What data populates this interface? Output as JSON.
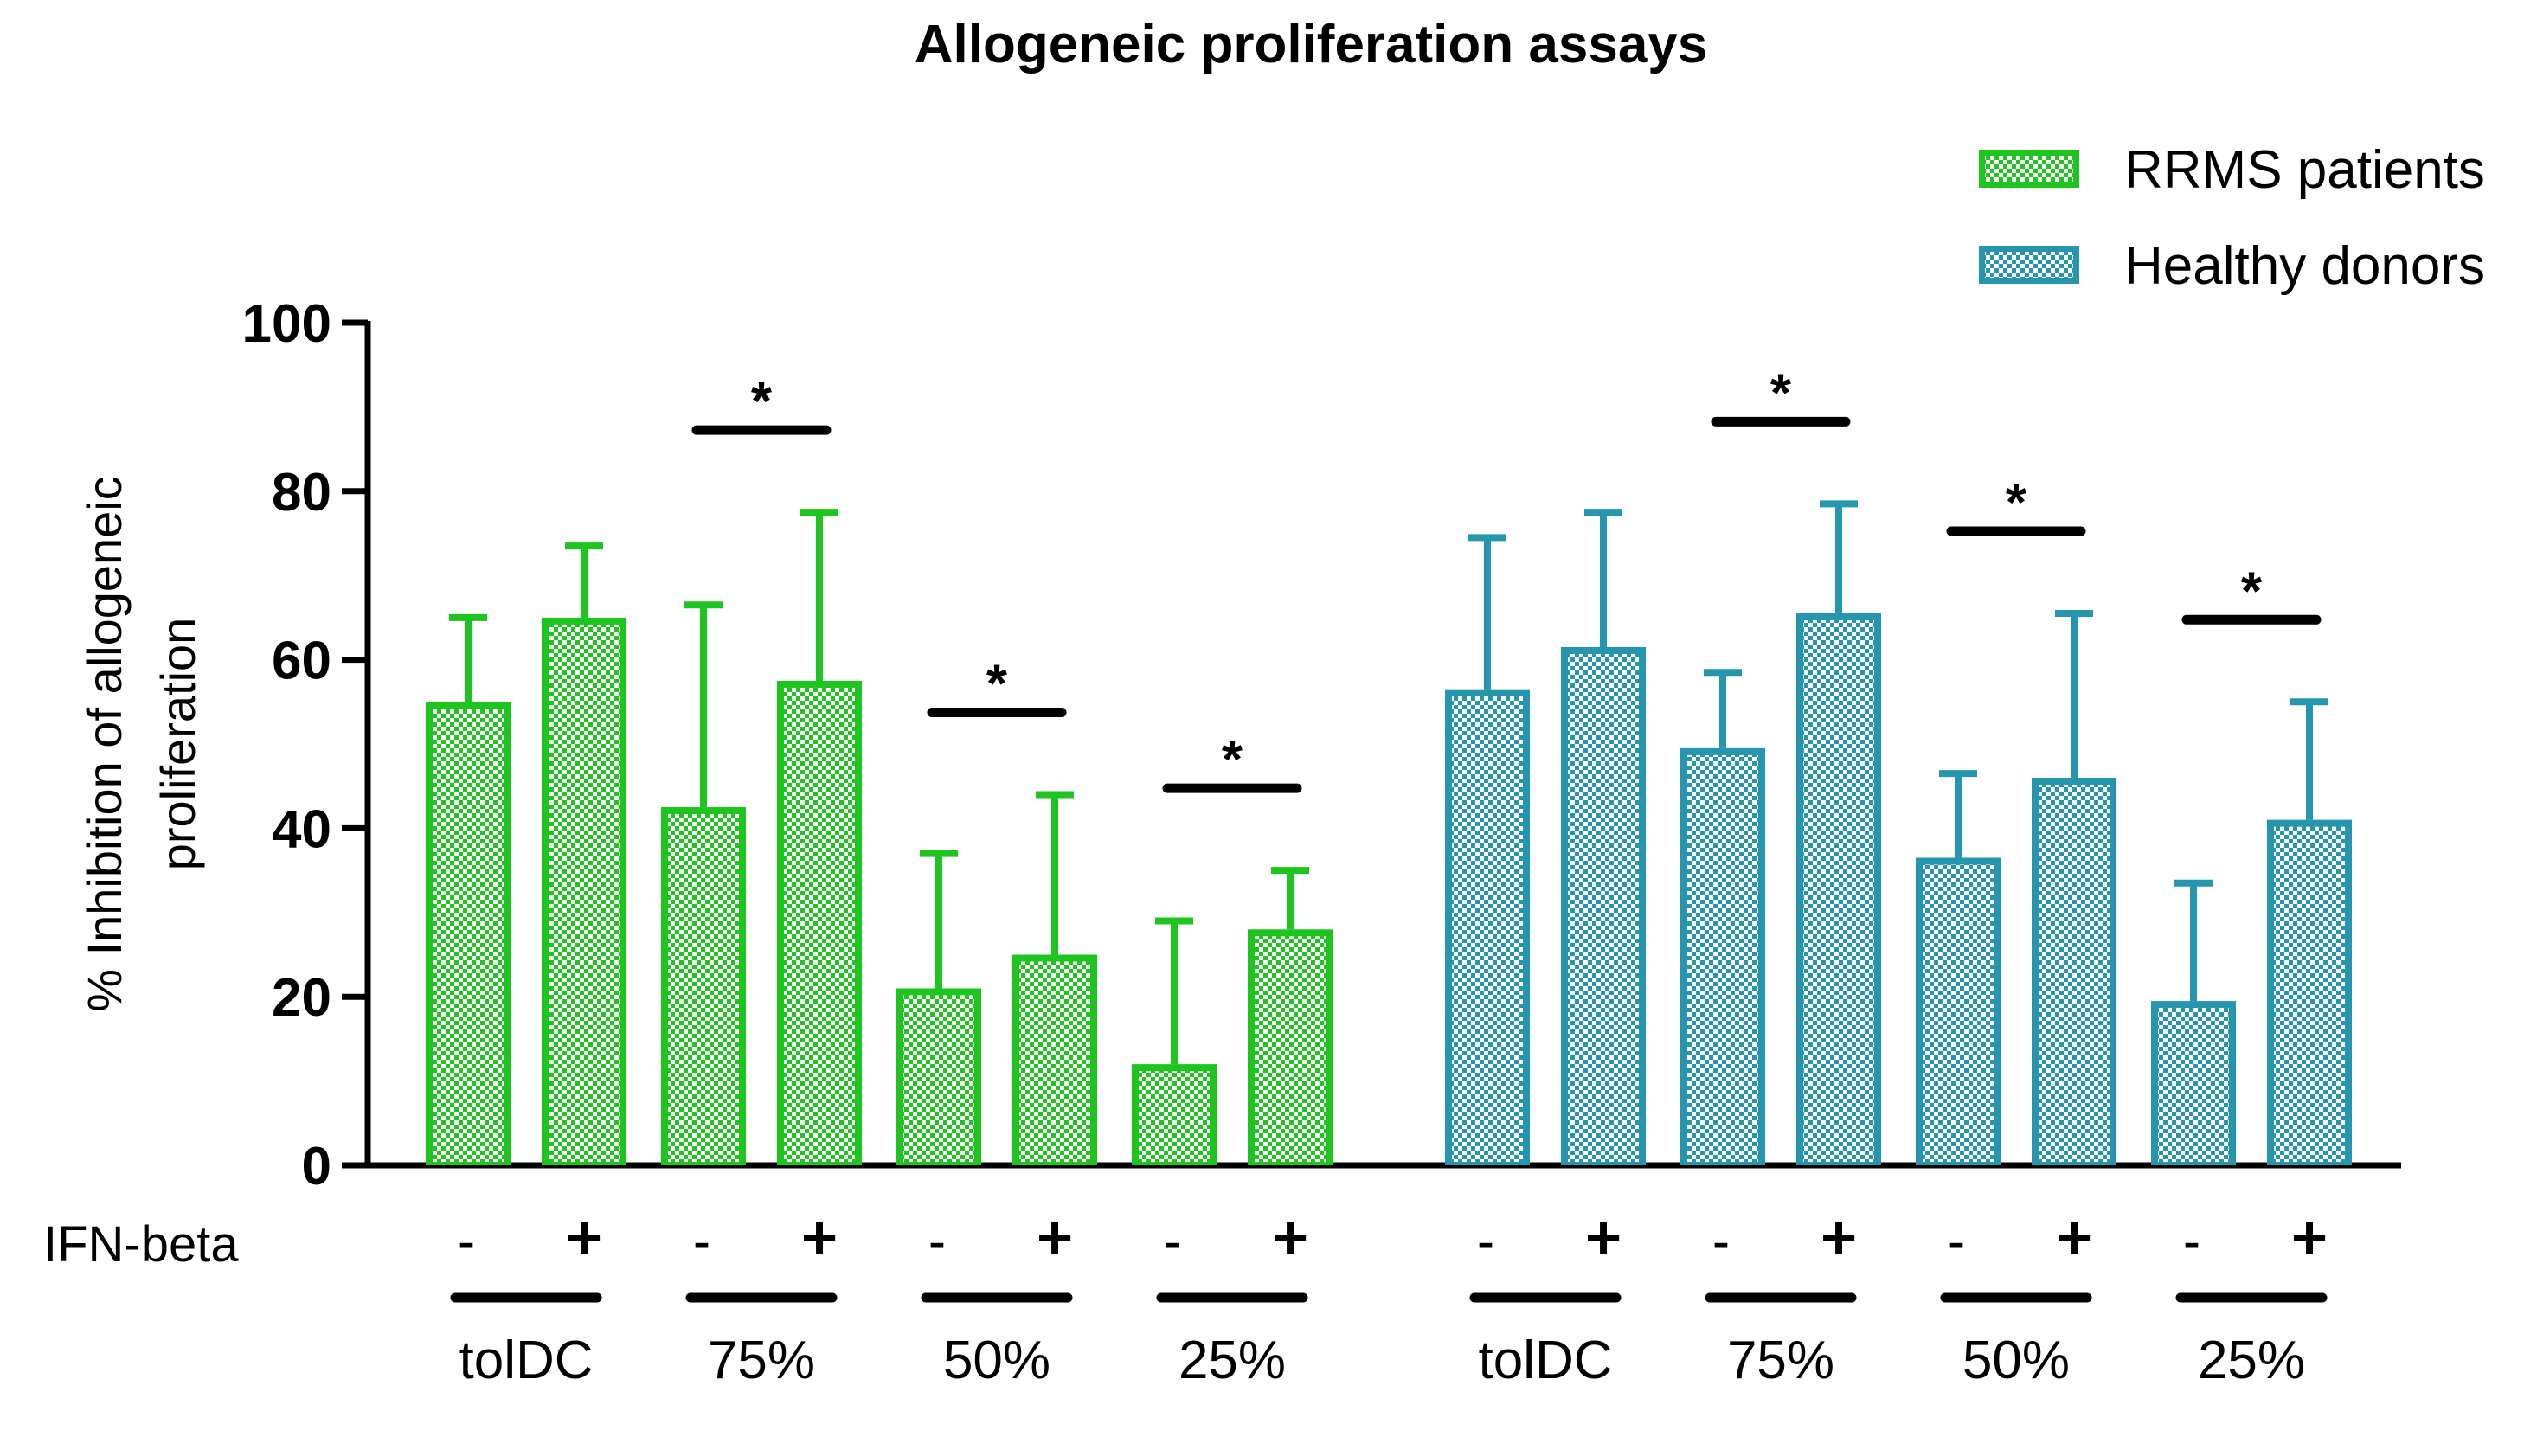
{
  "chart_data": {
    "type": "bar",
    "title": "Allogeneic proliferation assays",
    "ylabel_line1": "% Inhibition of allogeneic",
    "ylabel_line2": "proliferation",
    "ylim": [
      0,
      100
    ],
    "yticks": [
      "0",
      "20",
      "40",
      "60",
      "80",
      "100"
    ],
    "ytick_values": [
      0,
      20,
      40,
      60,
      80,
      100
    ],
    "treatment_label": "IFN-beta",
    "treatment_minus": "-",
    "treatment_plus": "+",
    "significance_marker": "*",
    "groups": [
      "tolDC",
      "75%",
      "50%",
      "25%"
    ],
    "series": [
      {
        "name": "RRMS patients",
        "color": "#1ec51e",
        "values": [
          55,
          65,
          42.5,
          57.5,
          21,
          25,
          12,
          28
        ],
        "errors": [
          10,
          8.5,
          24,
          20,
          16,
          19,
          17,
          7
        ],
        "significant_groups": [
          false,
          true,
          true,
          true
        ]
      },
      {
        "name": "Healthy donors",
        "color": "#2596ae",
        "values": [
          56.5,
          61.5,
          49.5,
          65.5,
          36.5,
          46,
          19.5,
          41
        ],
        "errors": [
          18,
          16,
          9,
          13,
          10,
          19.5,
          14,
          14
        ],
        "significant_groups": [
          false,
          true,
          true,
          true
        ]
      }
    ],
    "legend": [
      "RRMS patients",
      "Healthy donors"
    ],
    "legend_position": "top-right"
  }
}
